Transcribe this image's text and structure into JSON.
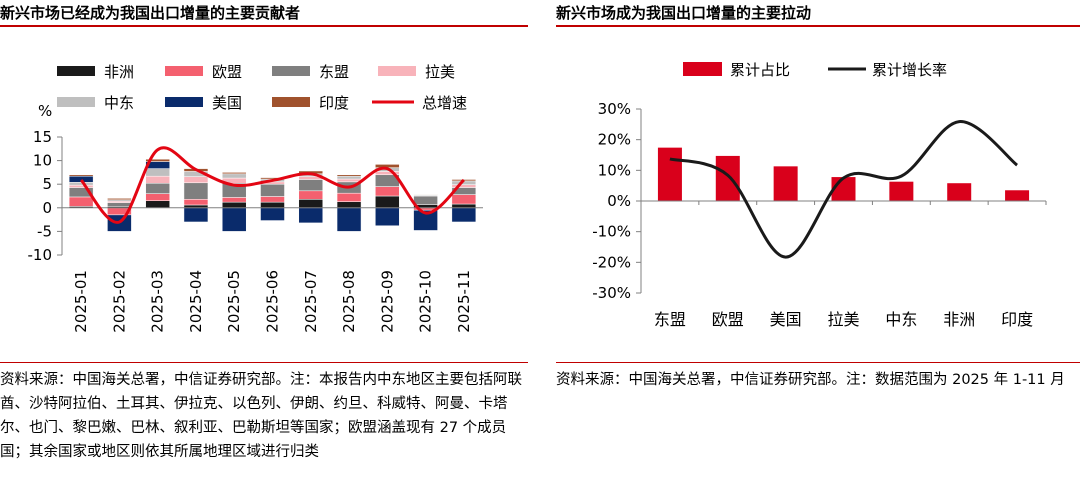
{
  "left": {
    "title": "新兴市场已经成为我国出口增量的主要贡献者",
    "source": "资料来源：中国海关总署，中信证券研究部。注：本报告内中东地区主要包括阿联酋、沙特阿拉伯、土耳其、伊拉克、以色列、伊朗、约旦、科威特、阿曼、卡塔尔、也门、黎巴嫩、巴林、叙利亚、巴勒斯坦等国家；欧盟涵盖现有 27 个成员国；其余国家或地区则依其所属地理区域进行归类"
  },
  "right": {
    "title": "新兴市场成为我国出口增量的主要拉动",
    "source": "资料来源：中国海关总署，中信证券研究部。注：数据范围为 2025 年 1-11 月"
  },
  "chart_data": [
    {
      "type": "bar",
      "stacked": true,
      "ylabel": "%",
      "ylim": [
        -10,
        15
      ],
      "yticks": [
        15,
        10,
        5,
        0,
        -5,
        -10
      ],
      "categories": [
        "2025-01",
        "2025-02",
        "2025-03",
        "2025-04",
        "2025-05",
        "2025-06",
        "2025-07",
        "2025-08",
        "2025-09",
        "2025-10",
        "2025-11"
      ],
      "series": [
        {
          "name": "非洲",
          "color": "#1a1a1a",
          "values": [
            0.3,
            0.3,
            1.5,
            0.6,
            1.2,
            1.2,
            1.8,
            1.3,
            2.5,
            0.7,
            0.8
          ]
        },
        {
          "name": "欧盟",
          "color": "#f4606f",
          "values": [
            2.0,
            -1.5,
            1.5,
            1.2,
            1.0,
            1.2,
            1.8,
            1.8,
            2.0,
            -0.5,
            2.0
          ]
        },
        {
          "name": "东盟",
          "color": "#7f7f7f",
          "values": [
            2.0,
            0.8,
            2.2,
            3.5,
            3.0,
            2.6,
            2.4,
            2.4,
            2.5,
            1.8,
            1.5
          ]
        },
        {
          "name": "拉美",
          "color": "#f8b3ba",
          "values": [
            0.5,
            0.3,
            1.5,
            1.3,
            1.1,
            0.5,
            0.6,
            0.6,
            0.7,
            0.1,
            0.6
          ]
        },
        {
          "name": "中东",
          "color": "#bfbfbf",
          "values": [
            0.6,
            0.3,
            1.6,
            1.1,
            0.9,
            0.6,
            0.6,
            0.6,
            0.8,
            0.2,
            0.8
          ]
        },
        {
          "name": "美国",
          "color": "#0a2b6b",
          "values": [
            1.3,
            -3.5,
            1.5,
            -3.0,
            -5.0,
            -2.7,
            -3.2,
            -5.0,
            -3.8,
            -4.3,
            -3.0
          ]
        },
        {
          "name": "印度",
          "color": "#a0522d",
          "values": [
            0.3,
            0.3,
            0.5,
            0.6,
            0.3,
            0.3,
            0.6,
            0.3,
            0.7,
            0.1,
            0.3
          ]
        }
      ],
      "line": {
        "name": "总增速",
        "color": "#e30613",
        "values": [
          5.9,
          -3.0,
          12.3,
          8.1,
          4.8,
          5.8,
          7.2,
          4.4,
          8.3,
          -1.1,
          5.9
        ]
      }
    },
    {
      "type": "bar",
      "ylim": [
        -30,
        30
      ],
      "yticks": [
        "30%",
        "20%",
        "10%",
        "0%",
        "-10%",
        "-20%",
        "-30%"
      ],
      "categories": [
        "东盟",
        "欧盟",
        "美国",
        "拉美",
        "中东",
        "非洲",
        "印度"
      ],
      "series": [
        {
          "name": "累计占比",
          "color": "#d9001b",
          "values": [
            17.4,
            14.7,
            11.3,
            7.8,
            6.3,
            5.8,
            3.5
          ]
        }
      ],
      "line": {
        "name": "累计增长率",
        "color": "#1a1a1a",
        "values": [
          13.7,
          8.4,
          -18.3,
          7.5,
          8.1,
          25.9,
          11.7
        ]
      }
    }
  ]
}
